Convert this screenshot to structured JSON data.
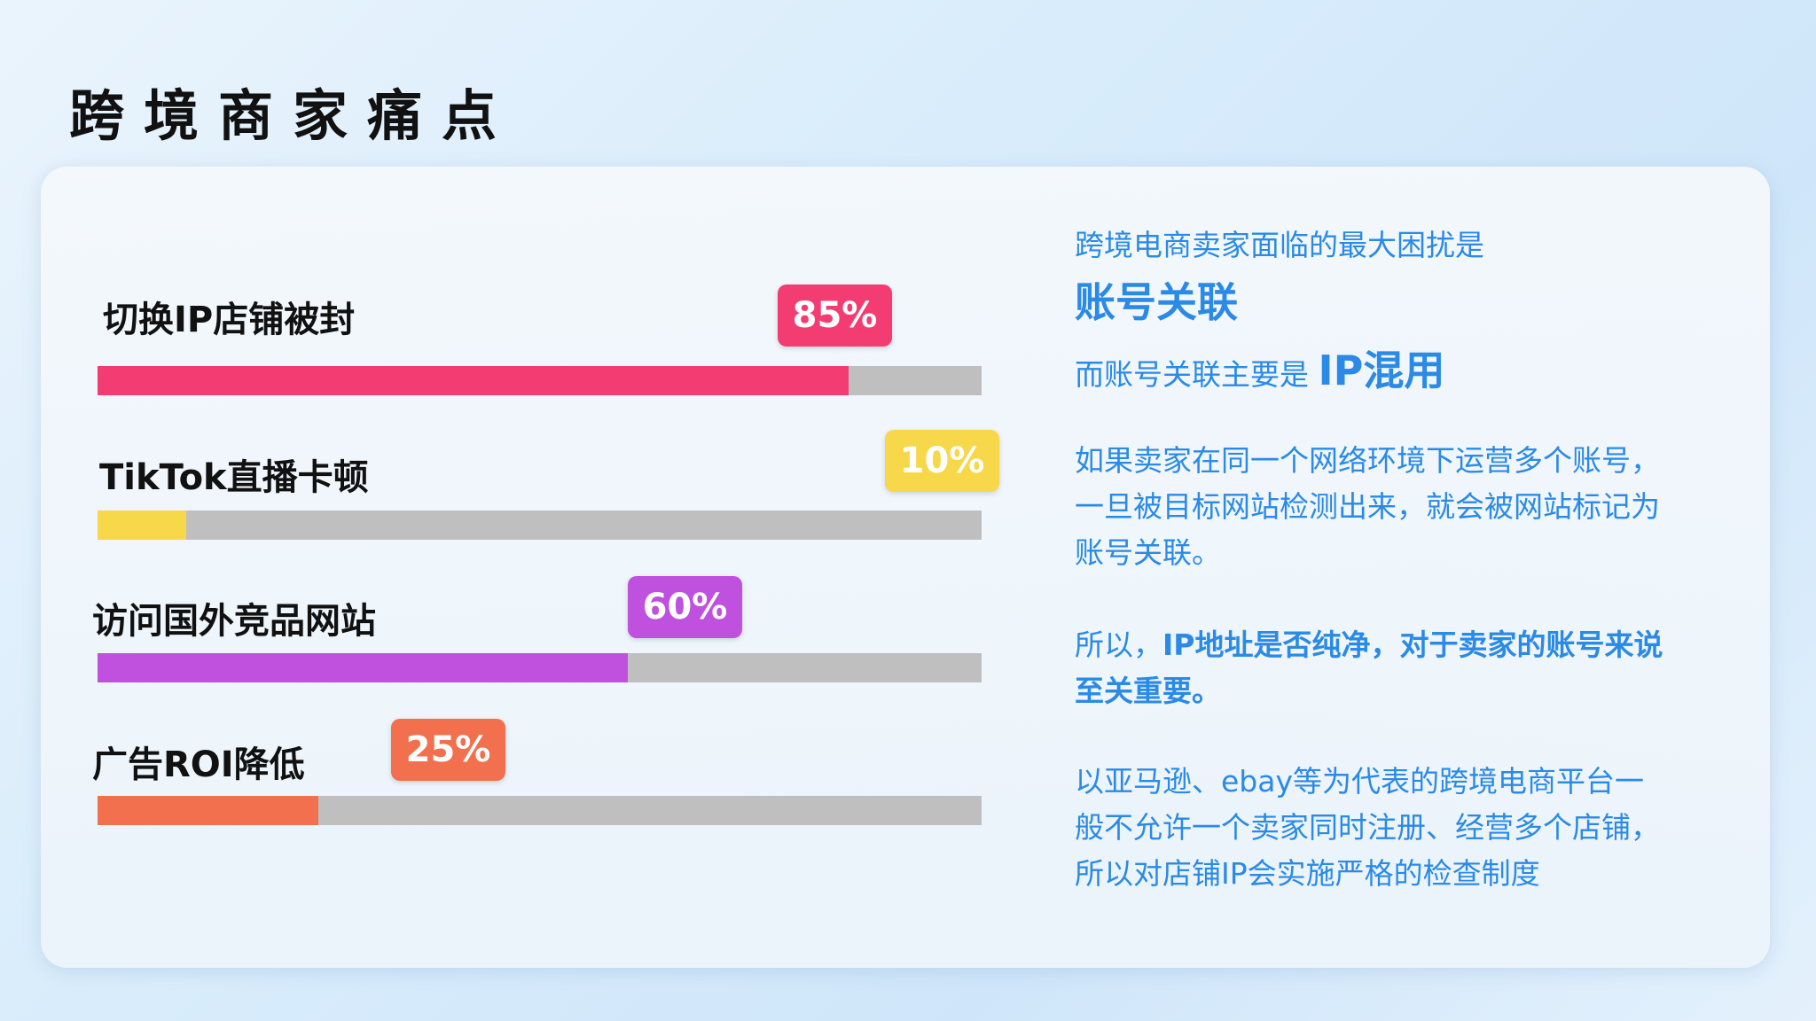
{
  "title": "跨境商家痛点",
  "items": [
    {
      "label": "切换IP店铺被封",
      "percent_label": "85%",
      "value": 85,
      "color": "#f33d72"
    },
    {
      "label": "TikTok直播卡顿",
      "percent_label": "10%",
      "value": 10,
      "color": "#f7d84a"
    },
    {
      "label": "访问国外竞品网站",
      "percent_label": "60%",
      "value": 60,
      "color": "#c050de"
    },
    {
      "label": "广告ROI降低",
      "percent_label": "25%",
      "value": 25,
      "color": "#f2704e"
    }
  ],
  "track_color": "#bfbfbf",
  "text_color": "#2a8ae6",
  "right": {
    "line1": "跨境电商卖家面临的最大困扰是",
    "line2": "账号关联",
    "line3a": "而账号关联主要是 ",
    "line3b": "IP混用",
    "p1": [
      "如果卖家在同一个网络环境下运营多个账号，",
      "一旦被目标网站检测出来，就会被网站标记为",
      "账号关联。"
    ],
    "p2a": "所以，",
    "p2b": "IP地址是否纯净，对于卖家的账号来说",
    "p2c": "至关重要。",
    "p3": [
      "以亚马逊、ebay等为代表的跨境电商平台一",
      "般不允许一个卖家同时注册、经营多个店铺，",
      "所以对店铺IP会实施严格的检查制度"
    ]
  }
}
